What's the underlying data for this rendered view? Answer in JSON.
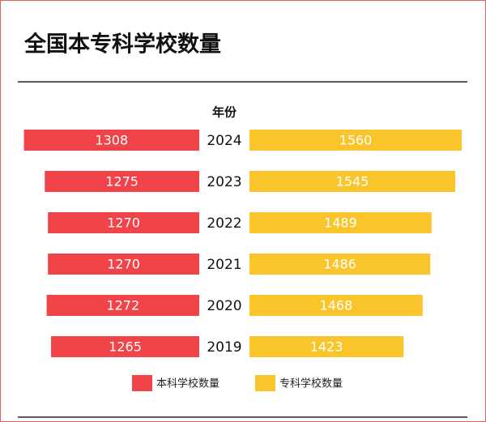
{
  "chart_data": {
    "type": "butterfly",
    "title": "全国本专科学校数量",
    "category_label": "年份",
    "categories": [
      "2024",
      "2023",
      "2022",
      "2021",
      "2020",
      "2019"
    ],
    "series": [
      {
        "name": "本科学校数量",
        "color": "#f0444a",
        "side": "left",
        "xlim": [
          1030,
          1310
        ],
        "values": [
          1308,
          1275,
          1270,
          1270,
          1272,
          1265
        ]
      },
      {
        "name": "专科学校数量",
        "color": "#f9c52b",
        "side": "right",
        "xlim": [
          1060,
          1560
        ],
        "values": [
          1560,
          1545,
          1489,
          1486,
          1468,
          1423
        ]
      }
    ]
  }
}
